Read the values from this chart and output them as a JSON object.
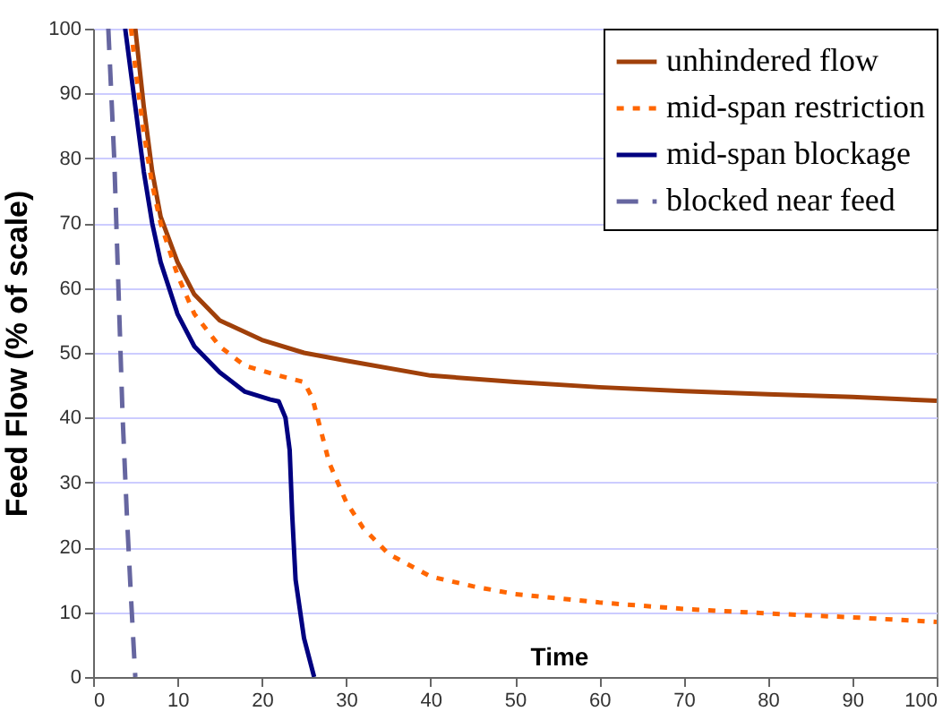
{
  "chart_data": {
    "type": "line",
    "xlabel": "Time",
    "ylabel": "Feed Flow (% of scale)",
    "xlim": [
      0,
      100
    ],
    "ylim": [
      0,
      100
    ],
    "xticks": [
      0,
      10,
      20,
      30,
      40,
      50,
      60,
      70,
      80,
      90,
      100
    ],
    "yticks": [
      0,
      10,
      20,
      30,
      40,
      50,
      60,
      70,
      80,
      90,
      100
    ],
    "grid": "y",
    "legend": "top right",
    "marker": "none",
    "series": [
      {
        "name": "unhindered flow",
        "color": "#a0400a",
        "line_style": "solid",
        "x": [
          5,
          6,
          7,
          8,
          10,
          12,
          15,
          20,
          25,
          30,
          40,
          50,
          60,
          70,
          80,
          90,
          100
        ],
        "values": [
          100,
          88,
          78,
          71,
          64,
          59,
          55,
          52,
          50,
          48.8,
          46.5,
          45.5,
          44.7,
          44.1,
          43.6,
          43.2,
          42.6
        ]
      },
      {
        "name": "mid-span restriction",
        "color": "#ff6600",
        "line_style": "dotted",
        "x": [
          4.5,
          5,
          6,
          7,
          8,
          10,
          12,
          15,
          18,
          22,
          25,
          26,
          27,
          28,
          30,
          32,
          35,
          40,
          45,
          50,
          60,
          70,
          80,
          90,
          100
        ],
        "values": [
          100,
          94,
          84,
          76,
          70,
          62,
          56,
          51,
          48,
          46.5,
          45.5,
          43,
          38,
          33,
          27,
          23,
          19,
          15.5,
          14,
          12.8,
          11.5,
          10.5,
          9.8,
          9.2,
          8.5
        ]
      },
      {
        "name": "mid-span blockage",
        "color": "#000080",
        "line_style": "solid",
        "x": [
          3.8,
          5,
          6,
          7,
          8,
          10,
          12,
          15,
          18,
          21,
          22,
          22.8,
          23.3,
          23.6,
          24,
          25,
          26.2
        ],
        "values": [
          100,
          88,
          78,
          70,
          64,
          56,
          51,
          47,
          44,
          42.8,
          42.5,
          40,
          35,
          25,
          15,
          6,
          0
        ]
      },
      {
        "name": "blocked near feed",
        "color": "#6666a0",
        "line_style": "dashed",
        "x": [
          1.8,
          2.5,
          3,
          3.5,
          4,
          4.5,
          5
        ],
        "values": [
          100,
          80,
          60,
          40,
          25,
          12,
          0
        ]
      }
    ]
  }
}
